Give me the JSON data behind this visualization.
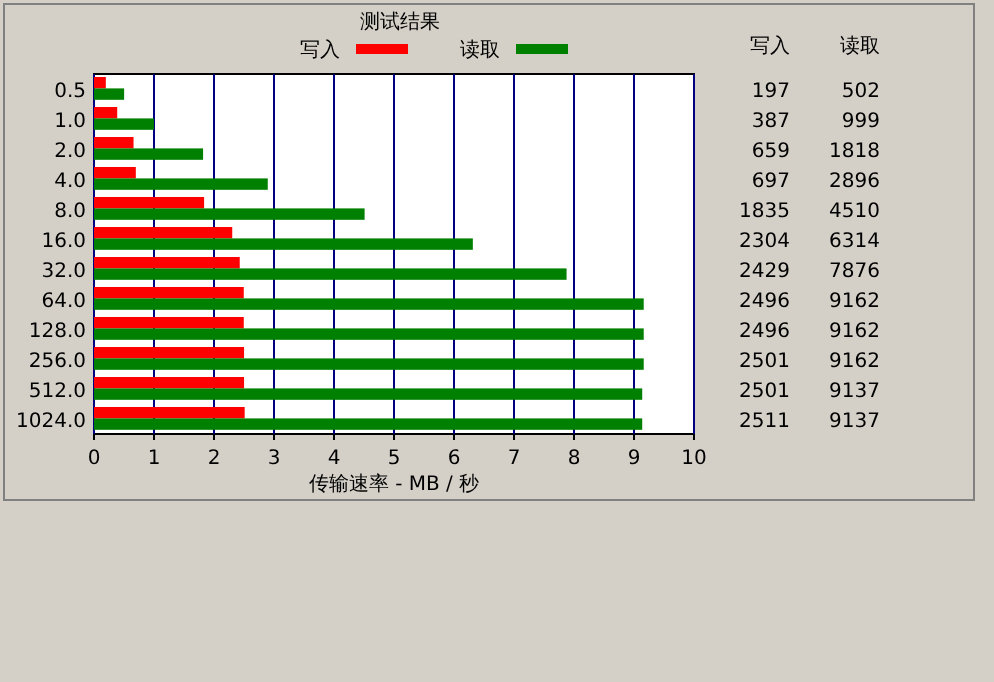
{
  "chart_data": {
    "type": "bar",
    "orientation": "horizontal",
    "title": "测试结果",
    "xlabel": "传输速率 - MB / 秒",
    "categories": [
      "0.5",
      "1.0",
      "2.0",
      "4.0",
      "8.0",
      "16.0",
      "32.0",
      "64.0",
      "128.0",
      "256.0",
      "512.0",
      "1024.0"
    ],
    "series": [
      {
        "name": "写入",
        "color": "#ff0000",
        "values": [
          0.197,
          0.387,
          0.659,
          0.697,
          1.835,
          2.304,
          2.429,
          2.496,
          2.496,
          2.501,
          2.501,
          2.511
        ]
      },
      {
        "name": "读取",
        "color": "#008000",
        "values": [
          0.502,
          0.999,
          1.818,
          2.896,
          4.51,
          6.314,
          7.876,
          9.162,
          9.162,
          9.162,
          9.137,
          9.137
        ]
      }
    ],
    "annotations": [
      "写入",
      "读取",
      "197",
      "502",
      "387",
      "999",
      "659",
      "1818",
      "697",
      "2896",
      "1835",
      "4510",
      "2304",
      "6314",
      "2429",
      "7876",
      "2496",
      "9162",
      "2496",
      "9162",
      "2501",
      "9162",
      "2501",
      "9137",
      "2511",
      "9137"
    ],
    "xlim": [
      0,
      10
    ],
    "xticks": [
      0,
      1,
      2,
      3,
      4,
      5,
      6,
      7,
      8,
      9,
      10
    ],
    "grid": "x",
    "legend": "top"
  }
}
